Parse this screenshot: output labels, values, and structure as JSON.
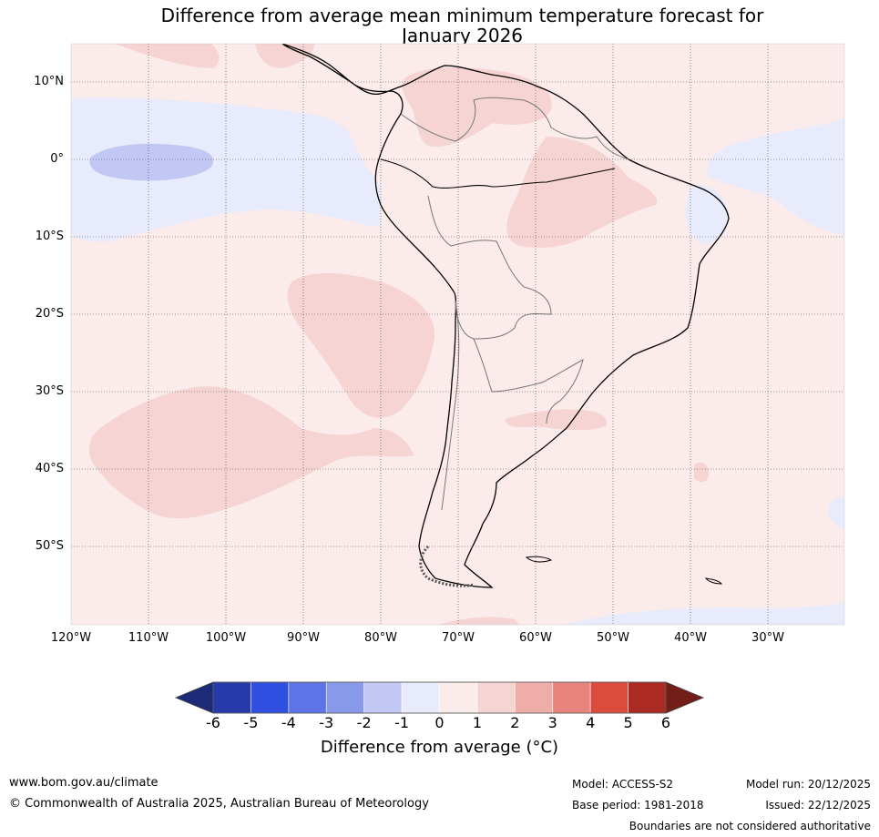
{
  "title": {
    "line1": "Difference from average mean minimum temperature forecast for",
    "line2": "January 2026"
  },
  "map": {
    "lat_labels": [
      "10°N",
      "0°",
      "10°S",
      "20°S",
      "30°S",
      "40°S",
      "50°S"
    ],
    "lat_values": [
      10,
      0,
      -10,
      -20,
      -30,
      -40,
      -50
    ],
    "lon_labels": [
      "120°W",
      "110°W",
      "100°W",
      "90°W",
      "80°W",
      "70°W",
      "60°W",
      "50°W",
      "40°W",
      "30°W"
    ],
    "lon_values": [
      -120,
      -110,
      -100,
      -90,
      -80,
      -70,
      -60,
      -50,
      -40,
      -30
    ],
    "extent": {
      "lon_min": -120,
      "lon_max": -20,
      "lat_min": -60,
      "lat_max": 15
    }
  },
  "colorbar": {
    "ticks": [
      "-6",
      "-5",
      "-4",
      "-3",
      "-2",
      "-1",
      "0",
      "1",
      "2",
      "3",
      "4",
      "5",
      "6"
    ],
    "colors": [
      "#263aab",
      "#2f4fe0",
      "#5d73e6",
      "#8899ea",
      "#c2c8f3",
      "#e8ebfb",
      "#fbebea",
      "#f5d4d3",
      "#eeada9",
      "#e8847d",
      "#dd4b3e",
      "#ab2a22"
    ],
    "under_color": "#1c2b78",
    "over_color": "#731d18",
    "label": "Difference from average (°C)"
  },
  "footer": {
    "url": "www.bom.gov.au/climate",
    "copyright": "© Commonwealth of Australia 2025, Australian Bureau of Meteorology",
    "model": "Model: ACCESS-S2",
    "base_period": "Base period: 1981-2018",
    "model_run": "Model run: 20/12/2025",
    "issued": "Issued: 22/12/2025",
    "disclaimer": "Boundaries are not considered authoritative"
  }
}
